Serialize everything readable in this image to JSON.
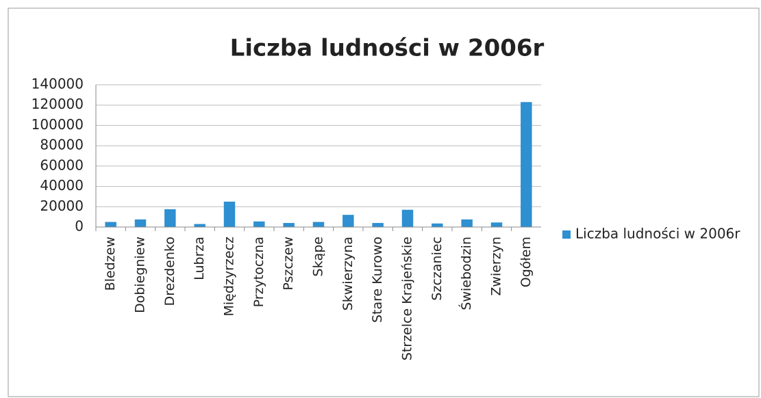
{
  "chart_data": {
    "type": "bar",
    "title": "Liczba ludności w 2006r",
    "categories": [
      "Bledzew",
      "Dobiegniew",
      "Drezdenko",
      "Lubrza",
      "Międzyrzecz",
      "Przytoczna",
      "Pszczew",
      "Skąpe",
      "Skwierzyna",
      "Stare Kurowo",
      "Strzelce Krajeńskie",
      "Szczaniec",
      "Świebodzin",
      "Zwierzyn",
      "Ogółem"
    ],
    "series": [
      {
        "name": "Liczba ludności w 2006r",
        "color": "#2e8fd1",
        "values": [
          5000,
          7500,
          17500,
          3000,
          25000,
          5500,
          4000,
          5000,
          12000,
          4000,
          17000,
          3500,
          7500,
          4500,
          123000
        ]
      }
    ],
    "ylim": [
      0,
      140000
    ],
    "yticks": [
      0,
      20000,
      40000,
      60000,
      80000,
      100000,
      120000,
      140000
    ],
    "grid": true,
    "legend": "right"
  }
}
